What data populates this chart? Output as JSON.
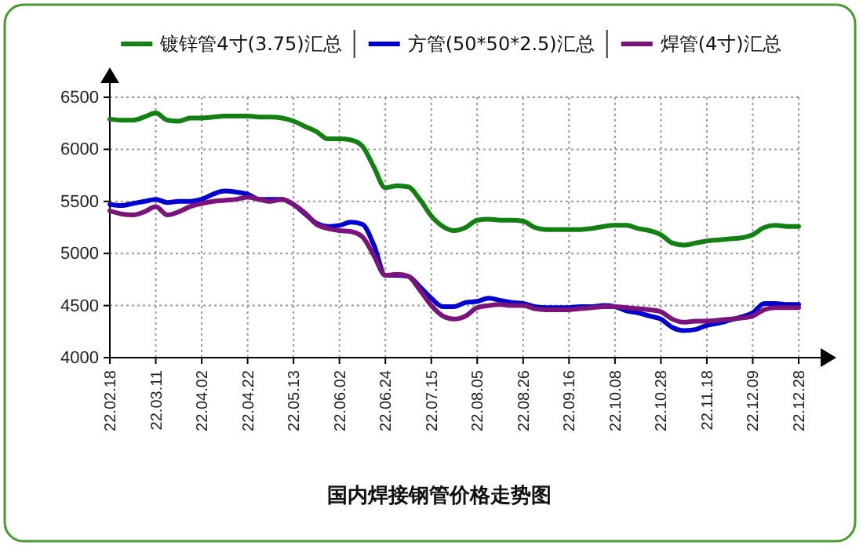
{
  "chart_data": {
    "type": "line",
    "title": "国内焊接钢管价格走势图",
    "categories": [
      "22.02.18",
      null,
      null,
      null,
      "22.03.11",
      null,
      null,
      null,
      "22.04.02",
      null,
      null,
      null,
      "22.04.22",
      null,
      null,
      null,
      "22.05.13",
      null,
      null,
      null,
      "22.06.02",
      null,
      null,
      null,
      "22.06.24",
      null,
      null,
      null,
      "22.07.15",
      null,
      null,
      null,
      "22.08.05",
      null,
      null,
      null,
      "22.08.26",
      null,
      null,
      null,
      "22.09.16",
      null,
      null,
      null,
      "22.10.08",
      null,
      null,
      null,
      "22.10.28",
      null,
      null,
      null,
      "22.11.18",
      null,
      null,
      null,
      "22.12.09",
      null,
      null,
      null,
      "22.12.28"
    ],
    "series": [
      {
        "name": "镀锌管4寸(3.75)汇总",
        "color": "#138013",
        "values": [
          6290,
          6280,
          6280,
          6310,
          6350,
          6280,
          6270,
          6300,
          6300,
          6310,
          6320,
          6320,
          6320,
          6310,
          6310,
          6300,
          6270,
          6220,
          6170,
          6100,
          6100,
          6090,
          6030,
          5830,
          5630,
          5650,
          5640,
          5520,
          5360,
          5260,
          5220,
          5250,
          5320,
          5330,
          5320,
          5320,
          5310,
          5250,
          5230,
          5230,
          5230,
          5230,
          5240,
          5260,
          5270,
          5270,
          5240,
          5220,
          5180,
          5100,
          5080,
          5100,
          5120,
          5130,
          5140,
          5150,
          5180,
          5250,
          5270,
          5260,
          5260
        ]
      },
      {
        "name": "方管(50*50*2.5)汇总",
        "color": "#0000d0",
        "values": [
          5470,
          5460,
          5480,
          5500,
          5520,
          5490,
          5500,
          5500,
          5520,
          5570,
          5600,
          5590,
          5570,
          5520,
          5520,
          5520,
          5470,
          5380,
          5290,
          5260,
          5270,
          5300,
          5280,
          5080,
          4790,
          4790,
          4780,
          4680,
          4570,
          4490,
          4490,
          4530,
          4540,
          4570,
          4550,
          4530,
          4520,
          4490,
          4480,
          4480,
          4480,
          4490,
          4490,
          4500,
          4490,
          4450,
          4430,
          4400,
          4370,
          4290,
          4260,
          4270,
          4310,
          4330,
          4360,
          4390,
          4430,
          4520,
          4520,
          4510,
          4510
        ]
      },
      {
        "name": "焊管(4寸)汇总",
        "color": "#7a147a",
        "values": [
          5410,
          5380,
          5370,
          5400,
          5450,
          5370,
          5400,
          5450,
          5480,
          5500,
          5510,
          5520,
          5540,
          5520,
          5500,
          5520,
          5470,
          5390,
          5280,
          5240,
          5220,
          5210,
          5160,
          4980,
          4790,
          4800,
          4780,
          4650,
          4500,
          4400,
          4370,
          4400,
          4480,
          4500,
          4510,
          4500,
          4500,
          4470,
          4460,
          4460,
          4460,
          4470,
          4480,
          4490,
          4490,
          4480,
          4470,
          4460,
          4440,
          4370,
          4340,
          4350,
          4350,
          4360,
          4370,
          4380,
          4400,
          4460,
          4480,
          4480,
          4480
        ]
      }
    ],
    "ylim": [
      4000,
      6500
    ],
    "yticks": [
      4000,
      4500,
      5000,
      5500,
      6000,
      6500
    ],
    "grid": true,
    "legend": "top",
    "line_style": "solid",
    "marker": "none"
  }
}
